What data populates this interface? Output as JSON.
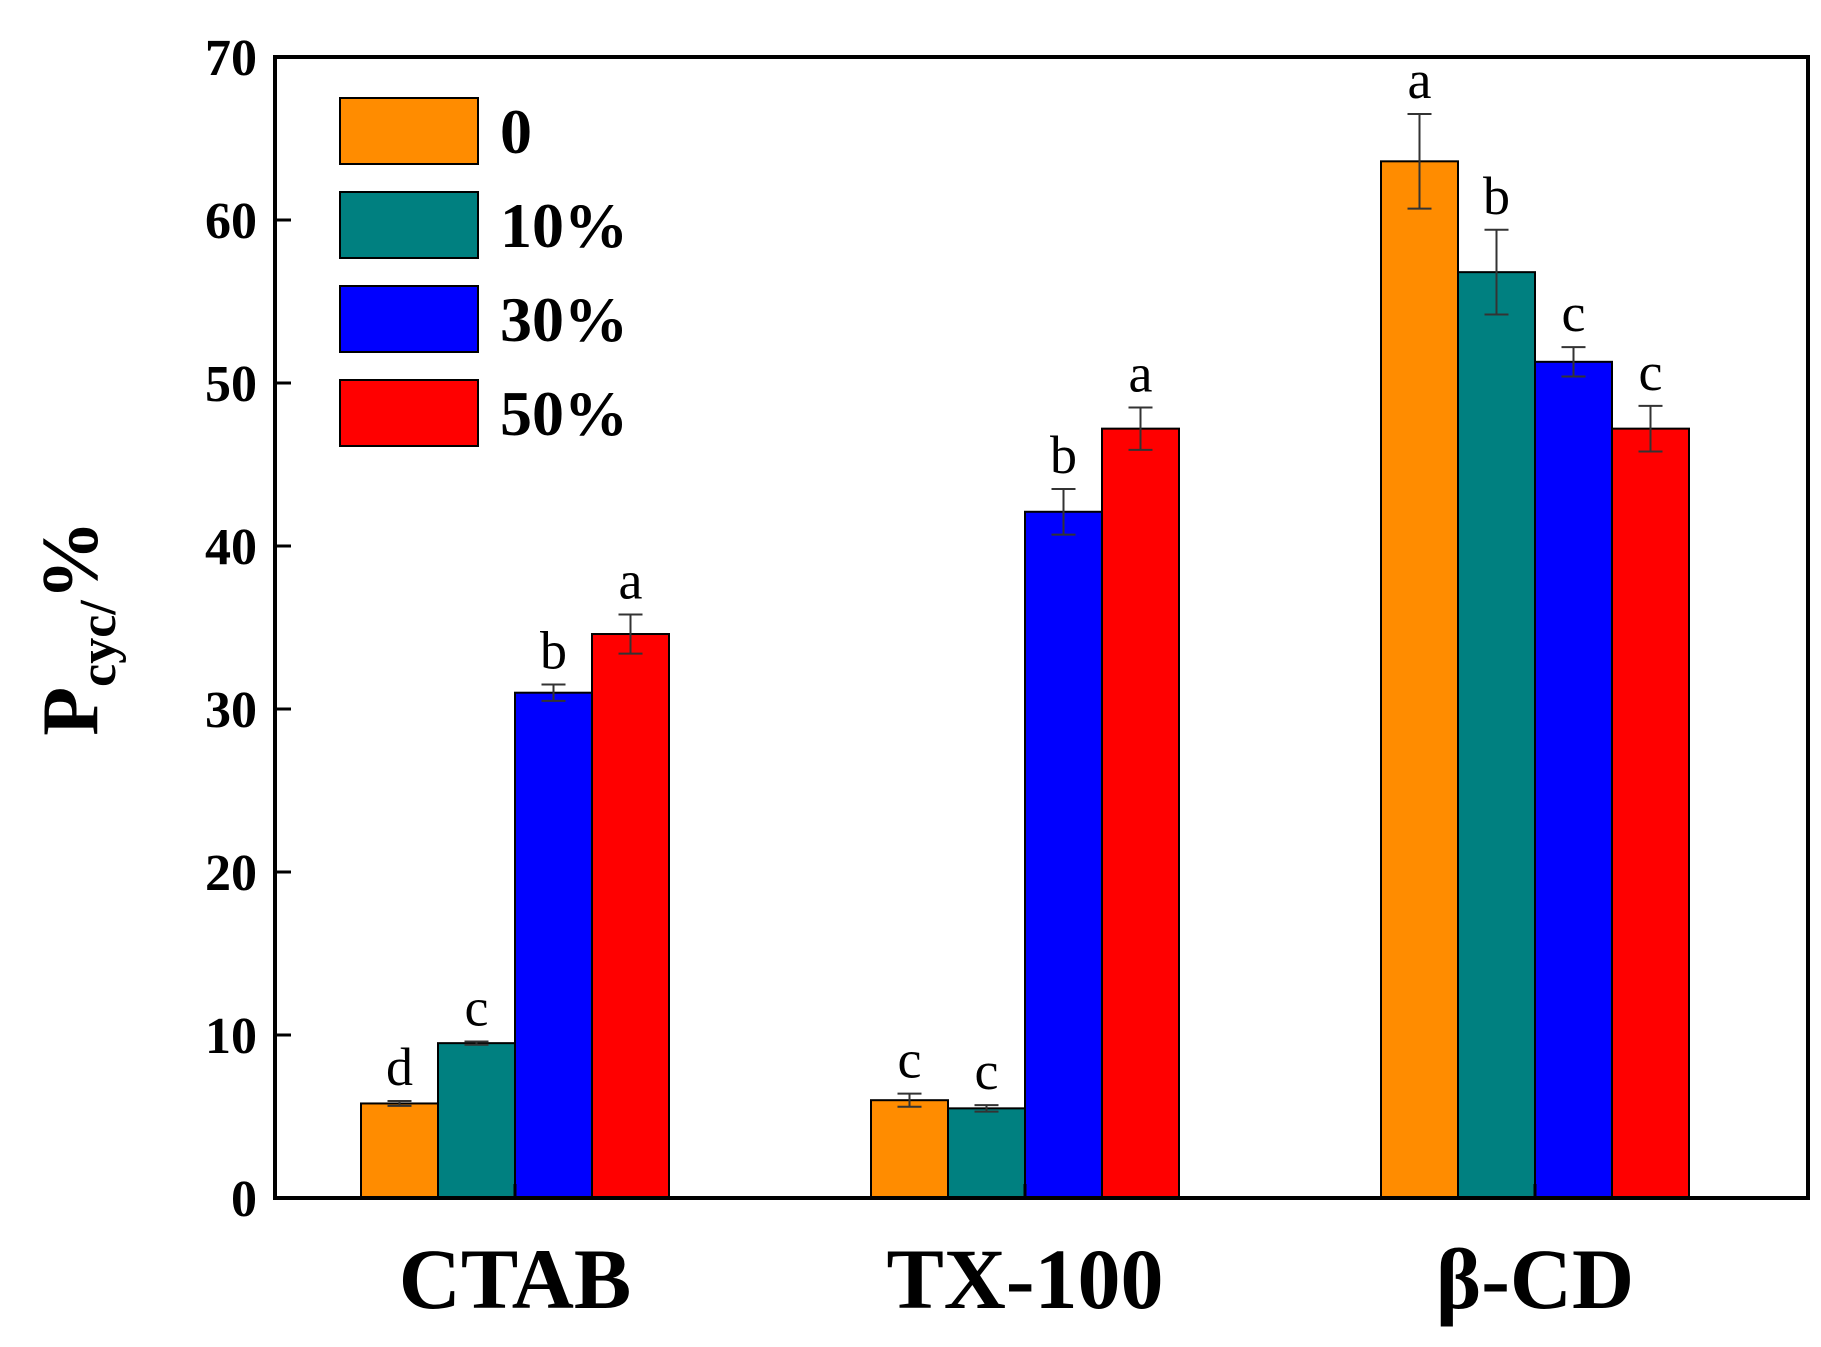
{
  "chart_data": {
    "type": "bar",
    "title": "",
    "xlabel": "",
    "ylabel": {
      "main": "P",
      "subscript": "cyc/",
      "suffix": "%"
    },
    "ylim": [
      0,
      70
    ],
    "yticks": [
      0,
      10,
      20,
      30,
      40,
      50,
      60,
      70
    ],
    "ytick_labels": [
      "0",
      "10",
      "20",
      "30",
      "40",
      "50",
      "60",
      "70"
    ],
    "categories": [
      "CTAB",
      "TX-100",
      "β-CD"
    ],
    "legend_position": "top-left",
    "grid": false,
    "series": [
      {
        "name": "0",
        "color": "#FF8C00",
        "values": [
          5.8,
          6.0,
          63.6
        ],
        "errors": [
          0.15,
          0.4,
          2.9
        ],
        "letters": [
          "d",
          "c",
          "a"
        ]
      },
      {
        "name": "10%",
        "color": "#008080",
        "values": [
          9.5,
          5.5,
          56.8
        ],
        "errors": [
          0.1,
          0.2,
          2.6
        ],
        "letters": [
          "c",
          "c",
          "b"
        ]
      },
      {
        "name": "30%",
        "color": "#0000FF",
        "values": [
          31.0,
          42.1,
          51.3
        ],
        "errors": [
          0.5,
          1.4,
          0.9
        ],
        "letters": [
          "b",
          "b",
          "c"
        ]
      },
      {
        "name": "50%",
        "color": "#FF0000",
        "values": [
          34.6,
          47.2,
          47.2
        ],
        "errors": [
          1.2,
          1.3,
          1.4
        ],
        "letters": [
          "a",
          "a",
          "c"
        ]
      }
    ]
  }
}
